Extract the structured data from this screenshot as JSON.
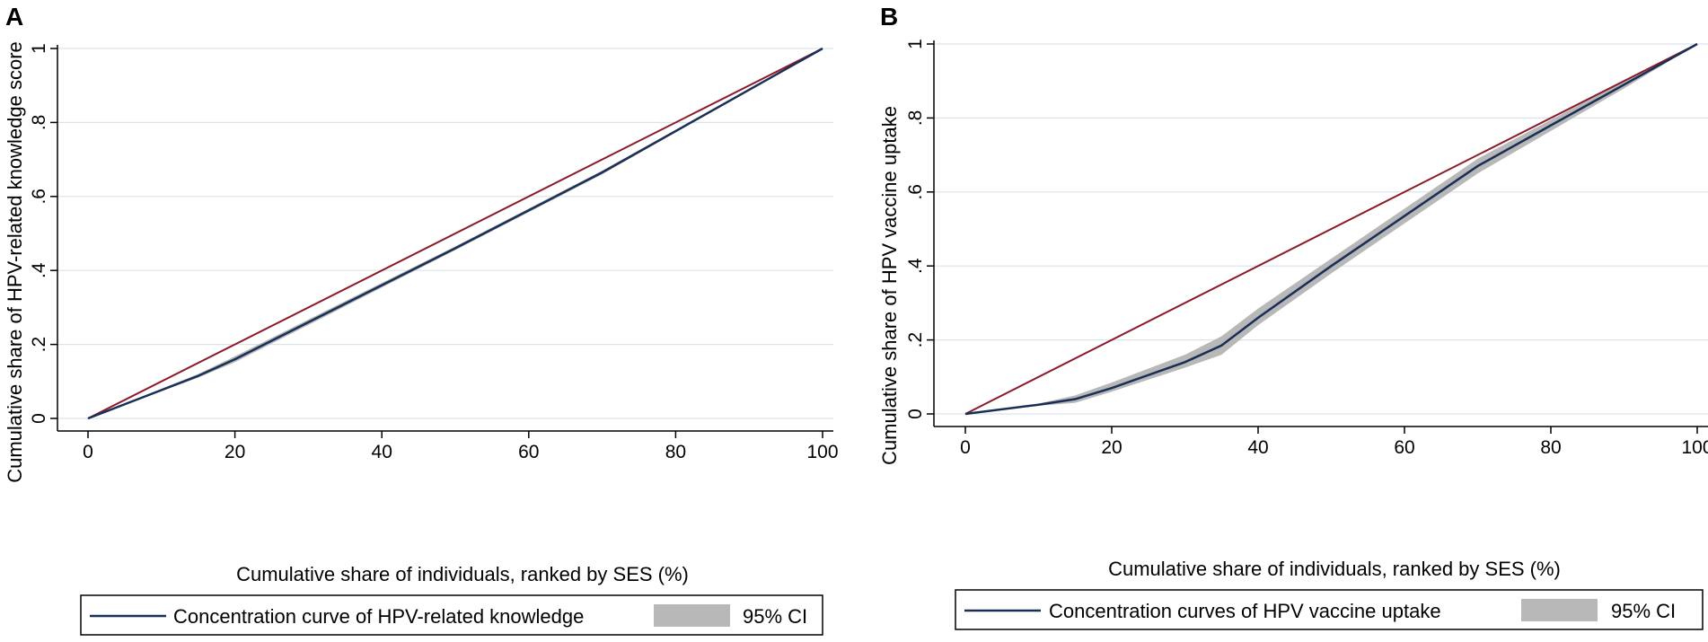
{
  "colors": {
    "curve": "#1a2f57",
    "equality": "#8b1a2b",
    "ci": "#b8b8b8",
    "grid": "#d9e4ea",
    "axis": "#000000"
  },
  "chart_data": [
    {
      "panel": "A",
      "type": "line",
      "xlabel": "Cumulative share of individuals, ranked by SES (%)",
      "ylabel": "Cumulative share of HPV-related knowledge score",
      "xlim": [
        0,
        100
      ],
      "ylim": [
        0,
        1
      ],
      "xticks": [
        0,
        20,
        40,
        60,
        80,
        100
      ],
      "xtick_labels": [
        "0",
        "20",
        "40",
        "60",
        "80",
        "100"
      ],
      "yticks": [
        0,
        0.2,
        0.4,
        0.6,
        0.8,
        1
      ],
      "ytick_labels": [
        "0",
        ".2",
        ".4",
        ".6",
        ".8",
        "1"
      ],
      "grid": true,
      "legend": {
        "position": "bottom",
        "curve_label": "Concentration curve of HPV-related knowledge",
        "ci_label": "95% CI"
      },
      "series": [
        {
          "name": "Concentration curve of HPV-related knowledge",
          "x": [
            0,
            15,
            20,
            35,
            50,
            70,
            100
          ],
          "y": [
            0,
            0.115,
            0.16,
            0.31,
            0.46,
            0.665,
            1
          ]
        },
        {
          "name": "Line of equality",
          "x": [
            0,
            100
          ],
          "y": [
            0,
            1
          ]
        }
      ],
      "ci": {
        "x": [
          0,
          15,
          20,
          35,
          50,
          70,
          100
        ],
        "lower": [
          0,
          0.11,
          0.152,
          0.303,
          0.455,
          0.66,
          1
        ],
        "upper": [
          0,
          0.12,
          0.168,
          0.317,
          0.465,
          0.67,
          1
        ]
      }
    },
    {
      "panel": "B",
      "type": "line",
      "xlabel": "Cumulative share of individuals, ranked by SES (%)",
      "ylabel": "Cumulative share of HPV vaccine uptake",
      "xlim": [
        0,
        100
      ],
      "ylim": [
        0,
        1
      ],
      "xticks": [
        0,
        20,
        40,
        60,
        80,
        100
      ],
      "xtick_labels": [
        "0",
        "20",
        "40",
        "60",
        "80",
        "100"
      ],
      "yticks": [
        0,
        0.2,
        0.4,
        0.6,
        0.8,
        1
      ],
      "ytick_labels": [
        "0",
        ".2",
        ".4",
        ".6",
        ".8",
        "1"
      ],
      "grid": true,
      "legend": {
        "position": "bottom",
        "curve_label": "Concentration curves of HPV vaccine uptake",
        "ci_label": "95% CI"
      },
      "series": [
        {
          "name": "Concentration curves of HPV vaccine uptake",
          "x": [
            0,
            10,
            15,
            20,
            30,
            35,
            40,
            50,
            60,
            70,
            80,
            90,
            100
          ],
          "y": [
            0,
            0.025,
            0.04,
            0.07,
            0.14,
            0.185,
            0.26,
            0.4,
            0.535,
            0.67,
            0.78,
            0.89,
            1
          ]
        },
        {
          "name": "Line of equality",
          "x": [
            0,
            100
          ],
          "y": [
            0,
            1
          ]
        }
      ],
      "ci": {
        "x": [
          0,
          10,
          15,
          20,
          30,
          35,
          40,
          50,
          60,
          70,
          80,
          90,
          100
        ],
        "lower": [
          0,
          0.022,
          0.03,
          0.06,
          0.125,
          0.16,
          0.24,
          0.38,
          0.515,
          0.65,
          0.765,
          0.88,
          1
        ],
        "upper": [
          0,
          0.028,
          0.05,
          0.085,
          0.16,
          0.21,
          0.285,
          0.42,
          0.555,
          0.69,
          0.795,
          0.9,
          1
        ]
      }
    }
  ]
}
